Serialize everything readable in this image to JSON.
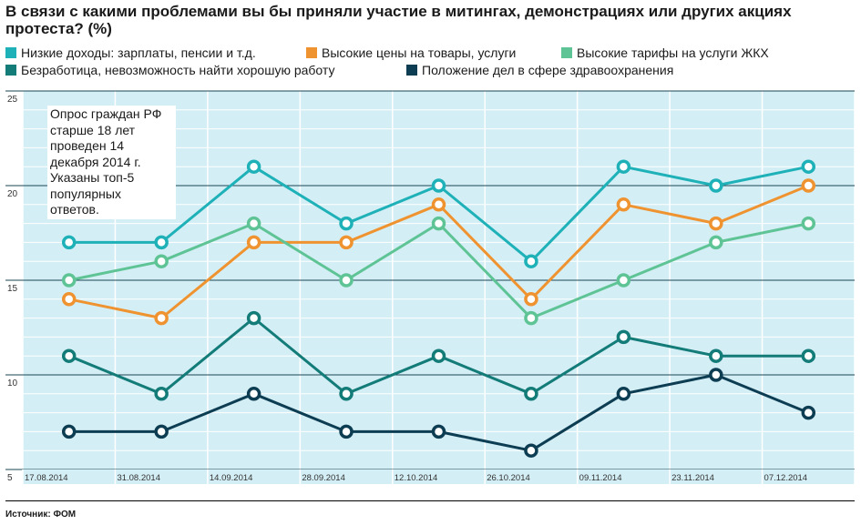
{
  "chart_data": {
    "type": "line",
    "title": "В связи с какими проблемами вы бы приняли участие в митингах, демонстрациях или других акциях протеста? (%)",
    "categories": [
      "17.08.2014",
      "31.08.2014",
      "14.09.2014",
      "28.09.2014",
      "12.10.2014",
      "26.10.2014",
      "09.11.2014",
      "23.11.2014",
      "07.12.2014"
    ],
    "ylim": [
      5,
      25
    ],
    "yticks": [
      "25",
      "20",
      "15",
      "10",
      "5"
    ],
    "grid": true,
    "legend_position": "top",
    "series": [
      {
        "name": "Низкие доходы: зарплаты, пенсии и т.д.",
        "color": "#1fb1b8",
        "values": [
          17,
          17,
          21,
          18,
          20,
          16,
          21,
          20,
          21
        ]
      },
      {
        "name": "Высокие цены на товары, услуги",
        "color": "#ef9330",
        "values": [
          14,
          13,
          17,
          17,
          19,
          14,
          19,
          18,
          20
        ]
      },
      {
        "name": "Высокие тарифы на услуги ЖКХ",
        "color": "#5fc495",
        "values": [
          15,
          16,
          18,
          15,
          18,
          13,
          15,
          17,
          18
        ]
      },
      {
        "name": "Безработица, невозможность найти хорошую работу",
        "color": "#137c78",
        "values": [
          11,
          9,
          13,
          9,
          11,
          9,
          12,
          11,
          11
        ]
      },
      {
        "name": "Положение дел в сфере здравоохранения",
        "color": "#0d3d52",
        "values": [
          7,
          7,
          9,
          7,
          7,
          6,
          9,
          10,
          8
        ]
      }
    ],
    "annotation": "Опрос граждан РФ старше 18 лет проведен 14 декабря 2014 г. Указаны топ-5 популярных ответов.",
    "source": "Источник: ФОМ"
  }
}
